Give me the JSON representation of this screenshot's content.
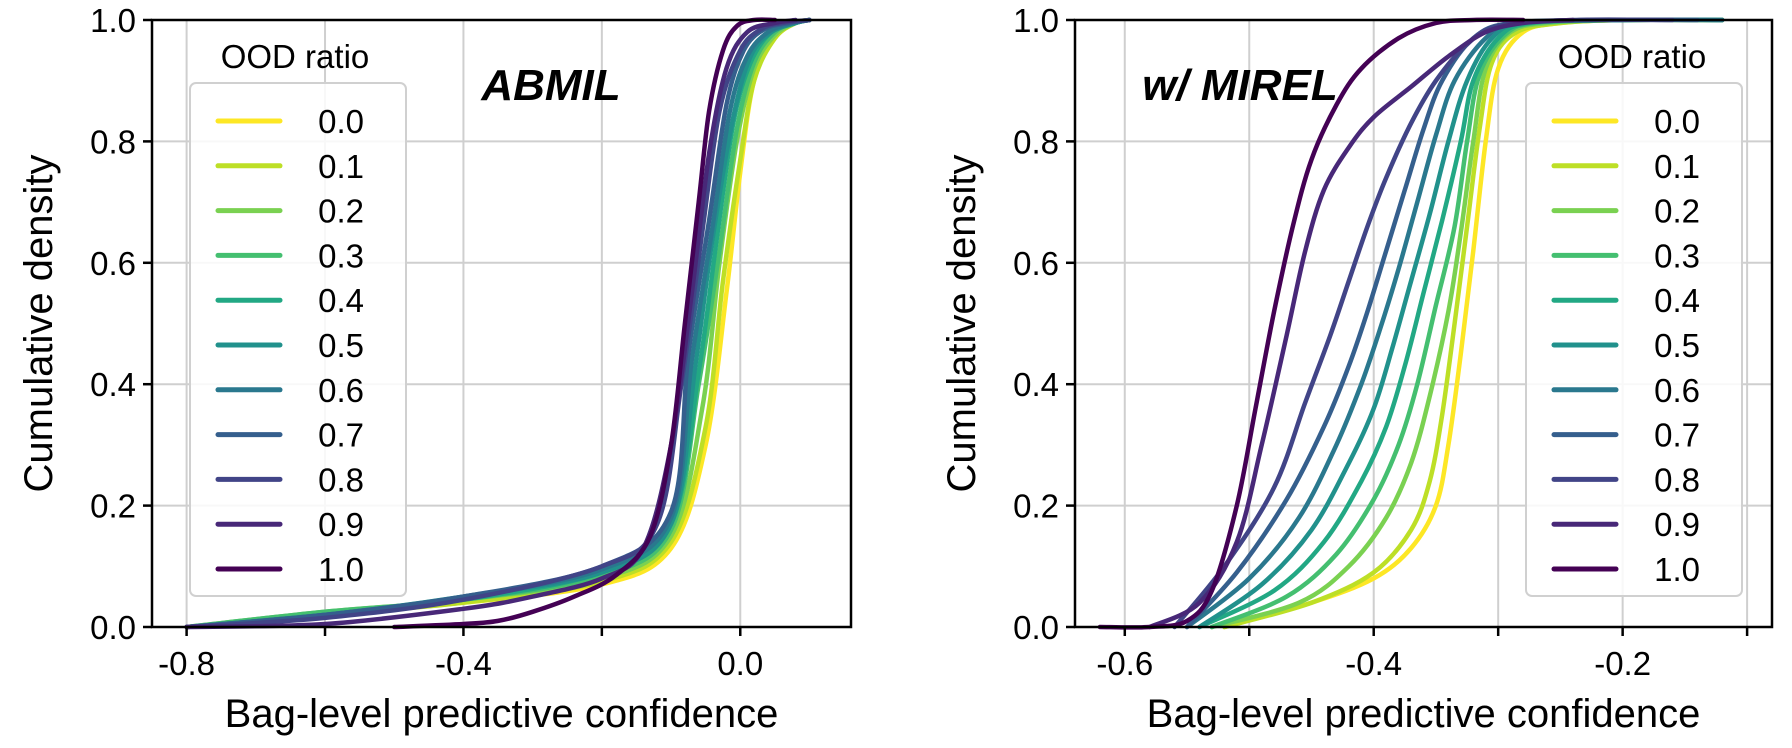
{
  "chart_data": [
    {
      "type": "line",
      "panel": "left",
      "title": "ABMIL",
      "xlabel": "Bag-level predictive confidence",
      "ylabel": "Cumulative density",
      "xlim": [
        -0.85,
        0.16
      ],
      "ylim": [
        0.0,
        1.0
      ],
      "xticks": [
        -0.8,
        -0.6,
        -0.4,
        -0.2,
        0.0
      ],
      "xtick_labels": [
        "-0.8",
        "",
        "-0.4",
        "",
        "0.0"
      ],
      "yticks": [
        0.0,
        0.2,
        0.4,
        0.6,
        0.8,
        1.0
      ],
      "ytick_labels": [
        "0.0",
        "0.2",
        "0.4",
        "0.6",
        "0.8",
        "1.0"
      ],
      "grid": true,
      "legend_title": "OOD ratio",
      "legend_position": "upper-left",
      "series": [
        {
          "name": "0.0",
          "color": "#fde725",
          "x": [
            -0.8,
            -0.6,
            -0.4,
            -0.2,
            -0.1,
            -0.05,
            -0.02,
            0.0,
            0.02,
            0.05,
            0.08,
            0.1
          ],
          "y": [
            0.0,
            0.02,
            0.04,
            0.07,
            0.13,
            0.3,
            0.55,
            0.75,
            0.9,
            0.97,
            0.995,
            1.0
          ]
        },
        {
          "name": "0.1",
          "color": "#bddf26",
          "x": [
            -0.8,
            -0.6,
            -0.4,
            -0.2,
            -0.1,
            -0.05,
            -0.025,
            0.0,
            0.02,
            0.05,
            0.08,
            0.1
          ],
          "y": [
            0.0,
            0.02,
            0.04,
            0.075,
            0.14,
            0.33,
            0.57,
            0.77,
            0.9,
            0.97,
            0.995,
            1.0
          ]
        },
        {
          "name": "0.2",
          "color": "#7ad151",
          "x": [
            -0.8,
            -0.6,
            -0.4,
            -0.2,
            -0.1,
            -0.055,
            -0.03,
            -0.005,
            0.02,
            0.05,
            0.08,
            0.1
          ],
          "y": [
            0.0,
            0.025,
            0.045,
            0.08,
            0.15,
            0.36,
            0.6,
            0.8,
            0.92,
            0.975,
            0.995,
            1.0
          ]
        },
        {
          "name": "0.3",
          "color": "#44bf70",
          "x": [
            -0.8,
            -0.6,
            -0.4,
            -0.2,
            -0.1,
            -0.06,
            -0.03,
            -0.005,
            0.02,
            0.05,
            0.08,
            0.1
          ],
          "y": [
            0.0,
            0.025,
            0.045,
            0.085,
            0.16,
            0.4,
            0.62,
            0.82,
            0.93,
            0.98,
            0.995,
            1.0
          ]
        },
        {
          "name": "0.4",
          "color": "#22a884",
          "x": [
            -0.8,
            -0.6,
            -0.4,
            -0.2,
            -0.1,
            -0.06,
            -0.035,
            -0.01,
            0.015,
            0.045,
            0.08,
            0.1
          ],
          "y": [
            0.0,
            0.02,
            0.045,
            0.09,
            0.17,
            0.42,
            0.63,
            0.83,
            0.93,
            0.98,
            0.995,
            1.0
          ]
        },
        {
          "name": "0.5",
          "color": "#21918c",
          "x": [
            -0.8,
            -0.6,
            -0.4,
            -0.2,
            -0.1,
            -0.065,
            -0.04,
            -0.01,
            0.015,
            0.045,
            0.08,
            0.1
          ],
          "y": [
            0.0,
            0.02,
            0.05,
            0.09,
            0.17,
            0.43,
            0.64,
            0.84,
            0.94,
            0.98,
            0.995,
            1.0
          ]
        },
        {
          "name": "0.6",
          "color": "#2a788e",
          "x": [
            -0.8,
            -0.6,
            -0.4,
            -0.2,
            -0.1,
            -0.07,
            -0.04,
            -0.015,
            0.01,
            0.04,
            0.075,
            0.1
          ],
          "y": [
            0.0,
            0.02,
            0.05,
            0.095,
            0.18,
            0.44,
            0.66,
            0.85,
            0.94,
            0.98,
            0.995,
            1.0
          ]
        },
        {
          "name": "0.7",
          "color": "#355f8d",
          "x": [
            -0.8,
            -0.6,
            -0.4,
            -0.2,
            -0.1,
            -0.075,
            -0.045,
            -0.02,
            0.005,
            0.035,
            0.07,
            0.1
          ],
          "y": [
            0.0,
            0.02,
            0.05,
            0.1,
            0.19,
            0.45,
            0.67,
            0.86,
            0.95,
            0.985,
            0.995,
            1.0
          ]
        },
        {
          "name": "0.8",
          "color": "#414487",
          "x": [
            -0.8,
            -0.6,
            -0.4,
            -0.2,
            -0.12,
            -0.085,
            -0.055,
            -0.03,
            0.0,
            0.03,
            0.06,
            0.1
          ],
          "y": [
            0.0,
            0.015,
            0.045,
            0.1,
            0.17,
            0.4,
            0.65,
            0.85,
            0.95,
            0.985,
            0.995,
            1.0
          ]
        },
        {
          "name": "0.9",
          "color": "#482878",
          "x": [
            -0.8,
            -0.6,
            -0.4,
            -0.3,
            -0.2,
            -0.14,
            -0.1,
            -0.07,
            -0.045,
            -0.02,
            0.01,
            0.05,
            0.08
          ],
          "y": [
            0.0,
            0.005,
            0.03,
            0.05,
            0.08,
            0.13,
            0.3,
            0.55,
            0.78,
            0.92,
            0.98,
            0.995,
            1.0
          ]
        },
        {
          "name": "1.0",
          "color": "#440154",
          "x": [
            -0.5,
            -0.4,
            -0.35,
            -0.3,
            -0.24,
            -0.18,
            -0.13,
            -0.1,
            -0.08,
            -0.06,
            -0.045,
            -0.025,
            -0.005,
            0.02,
            0.05
          ],
          "y": [
            0.0,
            0.005,
            0.01,
            0.025,
            0.05,
            0.085,
            0.15,
            0.3,
            0.5,
            0.7,
            0.85,
            0.95,
            0.99,
            1.0,
            1.0
          ]
        }
      ]
    },
    {
      "type": "line",
      "panel": "right",
      "title": "w/ MIREL",
      "xlabel": "Bag-level predictive confidence",
      "ylabel": "Cumulative density",
      "xlim": [
        -0.64,
        -0.08
      ],
      "ylim": [
        0.0,
        1.0
      ],
      "xticks": [
        -0.6,
        -0.5,
        -0.4,
        -0.3,
        -0.2,
        -0.1
      ],
      "xtick_labels": [
        "-0.6",
        "",
        "-0.4",
        "",
        "-0.2",
        ""
      ],
      "yticks": [
        0.0,
        0.2,
        0.4,
        0.6,
        0.8,
        1.0
      ],
      "ytick_labels": [
        "0.0",
        "0.2",
        "0.4",
        "0.6",
        "0.8",
        "1.0"
      ],
      "grid": true,
      "legend_title": "OOD ratio",
      "legend_position": "upper-right",
      "series": [
        {
          "name": "0.0",
          "color": "#fde725",
          "x": [
            -0.52,
            -0.45,
            -0.4,
            -0.37,
            -0.35,
            -0.34,
            -0.33,
            -0.32,
            -0.31,
            -0.3,
            -0.28,
            -0.25,
            -0.2,
            -0.12
          ],
          "y": [
            0.0,
            0.04,
            0.08,
            0.13,
            0.2,
            0.3,
            0.45,
            0.62,
            0.8,
            0.92,
            0.98,
            0.995,
            1.0,
            1.0
          ]
        },
        {
          "name": "0.1",
          "color": "#bddf26",
          "x": [
            -0.52,
            -0.45,
            -0.4,
            -0.37,
            -0.355,
            -0.345,
            -0.335,
            -0.325,
            -0.315,
            -0.305,
            -0.285,
            -0.25,
            -0.2,
            -0.12
          ],
          "y": [
            0.0,
            0.04,
            0.09,
            0.16,
            0.24,
            0.35,
            0.5,
            0.66,
            0.82,
            0.93,
            0.98,
            0.995,
            1.0,
            1.0
          ]
        },
        {
          "name": "0.2",
          "color": "#7ad151",
          "x": [
            -0.53,
            -0.46,
            -0.42,
            -0.39,
            -0.37,
            -0.355,
            -0.34,
            -0.33,
            -0.32,
            -0.31,
            -0.29,
            -0.26,
            -0.2,
            -0.12
          ],
          "y": [
            0.0,
            0.04,
            0.1,
            0.18,
            0.27,
            0.38,
            0.52,
            0.65,
            0.8,
            0.92,
            0.98,
            0.995,
            1.0,
            1.0
          ]
        },
        {
          "name": "0.3",
          "color": "#44bf70",
          "x": [
            -0.53,
            -0.47,
            -0.43,
            -0.4,
            -0.38,
            -0.365,
            -0.35,
            -0.335,
            -0.325,
            -0.315,
            -0.295,
            -0.27,
            -0.2,
            -0.12
          ],
          "y": [
            0.0,
            0.05,
            0.12,
            0.21,
            0.3,
            0.4,
            0.53,
            0.66,
            0.8,
            0.91,
            0.975,
            0.995,
            1.0,
            1.0
          ]
        },
        {
          "name": "0.4",
          "color": "#22a884",
          "x": [
            -0.54,
            -0.48,
            -0.44,
            -0.41,
            -0.39,
            -0.375,
            -0.36,
            -0.345,
            -0.33,
            -0.32,
            -0.3,
            -0.275,
            -0.2,
            -0.12
          ],
          "y": [
            0.0,
            0.06,
            0.14,
            0.24,
            0.33,
            0.43,
            0.55,
            0.67,
            0.8,
            0.9,
            0.97,
            0.995,
            1.0,
            1.0
          ]
        },
        {
          "name": "0.5",
          "color": "#21918c",
          "x": [
            -0.54,
            -0.49,
            -0.45,
            -0.42,
            -0.4,
            -0.385,
            -0.37,
            -0.355,
            -0.34,
            -0.325,
            -0.305,
            -0.28,
            -0.2,
            -0.12
          ],
          "y": [
            0.0,
            0.07,
            0.16,
            0.27,
            0.36,
            0.46,
            0.57,
            0.68,
            0.8,
            0.9,
            0.97,
            0.995,
            1.0,
            1.0
          ]
        },
        {
          "name": "0.6",
          "color": "#2a788e",
          "x": [
            -0.55,
            -0.5,
            -0.46,
            -0.43,
            -0.41,
            -0.395,
            -0.38,
            -0.365,
            -0.35,
            -0.335,
            -0.31,
            -0.285,
            -0.2,
            -0.12
          ],
          "y": [
            0.0,
            0.08,
            0.18,
            0.3,
            0.4,
            0.49,
            0.59,
            0.7,
            0.81,
            0.9,
            0.97,
            0.995,
            1.0,
            1.0
          ]
        },
        {
          "name": "0.7",
          "color": "#355f8d",
          "x": [
            -0.55,
            -0.51,
            -0.47,
            -0.44,
            -0.42,
            -0.405,
            -0.39,
            -0.375,
            -0.36,
            -0.345,
            -0.32,
            -0.29,
            -0.22,
            -0.14
          ],
          "y": [
            0.0,
            0.09,
            0.21,
            0.33,
            0.43,
            0.52,
            0.62,
            0.72,
            0.82,
            0.9,
            0.97,
            0.995,
            1.0,
            1.0
          ]
        },
        {
          "name": "0.8",
          "color": "#414487",
          "x": [
            -0.56,
            -0.52,
            -0.48,
            -0.455,
            -0.435,
            -0.42,
            -0.405,
            -0.39,
            -0.37,
            -0.35,
            -0.325,
            -0.3,
            -0.24,
            -0.16
          ],
          "y": [
            0.0,
            0.1,
            0.23,
            0.37,
            0.48,
            0.57,
            0.66,
            0.74,
            0.83,
            0.9,
            0.96,
            0.99,
            1.0,
            1.0
          ]
        },
        {
          "name": "0.9",
          "color": "#482878",
          "x": [
            -0.58,
            -0.54,
            -0.51,
            -0.49,
            -0.47,
            -0.455,
            -0.44,
            -0.42,
            -0.4,
            -0.37,
            -0.34,
            -0.31,
            -0.28,
            -0.24
          ],
          "y": [
            0.0,
            0.04,
            0.14,
            0.3,
            0.48,
            0.62,
            0.72,
            0.79,
            0.84,
            0.89,
            0.94,
            0.98,
            0.995,
            1.0
          ]
        },
        {
          "name": "1.0",
          "color": "#440154",
          "x": [
            -0.62,
            -0.58,
            -0.55,
            -0.53,
            -0.51,
            -0.495,
            -0.48,
            -0.465,
            -0.45,
            -0.43,
            -0.41,
            -0.38,
            -0.35,
            -0.32,
            -0.28
          ],
          "y": [
            0.0,
            0.0,
            0.01,
            0.06,
            0.2,
            0.36,
            0.52,
            0.66,
            0.77,
            0.86,
            0.92,
            0.97,
            0.995,
            1.0,
            1.0
          ]
        }
      ]
    }
  ]
}
